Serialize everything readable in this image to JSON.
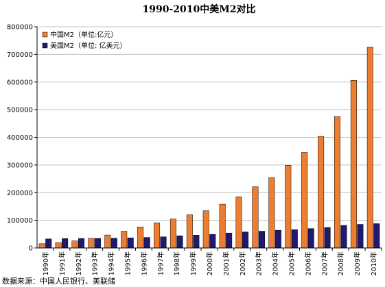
{
  "chart_data": {
    "type": "bar",
    "title": "1990-2010中美M2对比",
    "categories": [
      "1990年",
      "1991年",
      "1992年",
      "1993年",
      "1994年",
      "1995年",
      "1996年",
      "1997年",
      "1998年",
      "1999年",
      "2000年",
      "2001年",
      "2002年",
      "2003年",
      "2004年",
      "2005年",
      "2006年",
      "2007年",
      "2008年",
      "2009年",
      "2010年"
    ],
    "series": [
      {
        "name": "中国M2（单位:亿元）",
        "color": "#ED7D31",
        "values": [
          15300,
          19350,
          25400,
          34900,
          46900,
          60750,
          76100,
          90950,
          104500,
          119900,
          134600,
          158300,
          185000,
          221200,
          254100,
          298800,
          345600,
          403400,
          475200,
          606200,
          725800
        ]
      },
      {
        "name": "美国M2（单位: 亿美元）",
        "color": "#1F1A6E",
        "values": [
          32800,
          33900,
          34400,
          34600,
          35100,
          36500,
          38200,
          40300,
          44100,
          46300,
          49200,
          54100,
          57900,
          60700,
          64100,
          66100,
          70100,
          74000,
          81600,
          85400,
          87900
        ]
      }
    ],
    "xlabel": "",
    "ylabel": "",
    "ylim": [
      0,
      800000
    ],
    "yticks": [
      "0",
      "100000",
      "200000",
      "300000",
      "400000",
      "500000",
      "600000",
      "700000",
      "800000"
    ],
    "grid": true,
    "legend": "top-left"
  },
  "source_note": "数据来源：中国人民银行、美联储"
}
